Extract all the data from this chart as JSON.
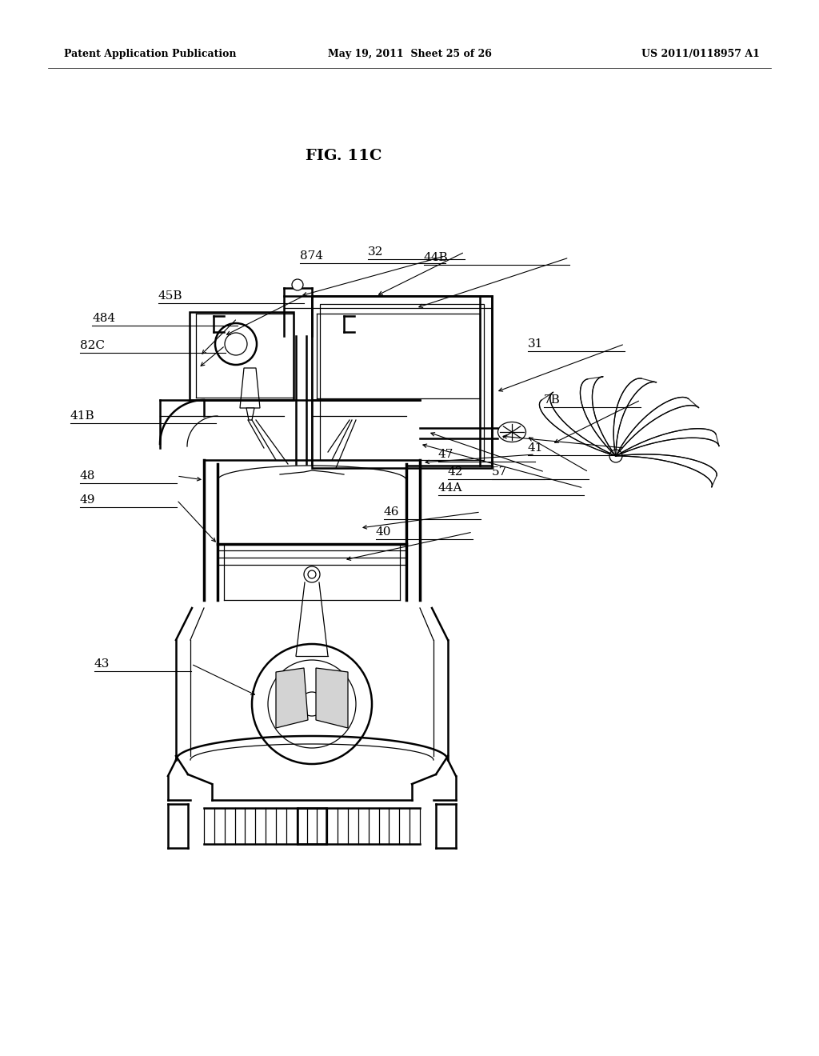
{
  "background_color": "#ffffff",
  "fig_width": 10.24,
  "fig_height": 13.2,
  "header_left": "Patent Application Publication",
  "header_mid": "May 19, 2011  Sheet 25 of 26",
  "header_right": "US 2011/0118957 A1",
  "fig_label": "FIG. 11C",
  "lw_main": 1.8,
  "lw_thin": 0.9,
  "lw_thick": 2.5
}
